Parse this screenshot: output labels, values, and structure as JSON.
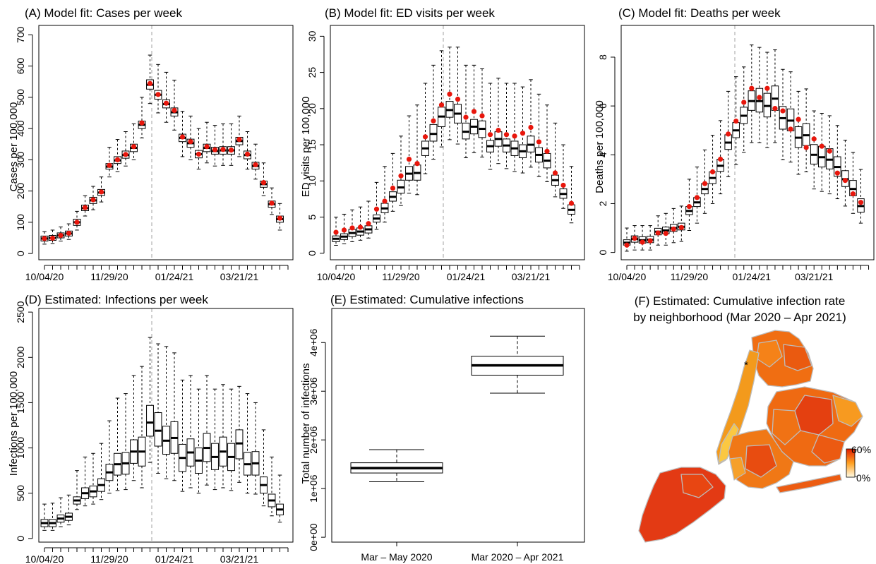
{
  "chart_data": [
    {
      "type": "boxplot",
      "title": "(A) Model fit: Cases per week",
      "ylabel": "Cases per 100,000",
      "ylim": [
        -20,
        730
      ],
      "yticks": [
        0,
        100,
        200,
        300,
        400,
        500,
        600,
        700
      ],
      "xtick_labels": [
        "10/04/20",
        "11/29/20",
        "01/24/21",
        "03/21/21"
      ],
      "x_start": "10/04/20",
      "week_step_days": 7,
      "vline_week": 13,
      "median": [
        48,
        50,
        58,
        64,
        100,
        145,
        170,
        195,
        278,
        298,
        315,
        338,
        412,
        540,
        508,
        478,
        452,
        370,
        353,
        318,
        338,
        328,
        330,
        330,
        360,
        315,
        280,
        222,
        158,
        110
      ],
      "q1": [
        40,
        42,
        50,
        56,
        90,
        137,
        160,
        186,
        270,
        288,
        305,
        326,
        400,
        526,
        494,
        466,
        440,
        358,
        340,
        306,
        326,
        318,
        318,
        318,
        348,
        303,
        270,
        212,
        148,
        100
      ],
      "q3": [
        56,
        58,
        66,
        72,
        110,
        155,
        180,
        205,
        288,
        310,
        328,
        350,
        424,
        556,
        522,
        492,
        466,
        382,
        366,
        330,
        350,
        340,
        342,
        342,
        372,
        328,
        292,
        232,
        168,
        120
      ],
      "wmin": [
        30,
        32,
        40,
        45,
        75,
        120,
        140,
        165,
        245,
        262,
        280,
        300,
        370,
        480,
        450,
        420,
        395,
        310,
        300,
        270,
        290,
        280,
        282,
        282,
        310,
        270,
        238,
        185,
        125,
        75
      ],
      "wmax": [
        70,
        75,
        85,
        95,
        135,
        185,
        215,
        245,
        340,
        365,
        390,
        415,
        500,
        635,
        605,
        580,
        555,
        455,
        440,
        400,
        420,
        410,
        415,
        415,
        440,
        390,
        350,
        290,
        210,
        160
      ],
      "observed": [
        48,
        49,
        58,
        65,
        100,
        147,
        172,
        197,
        282,
        300,
        317,
        342,
        418,
        544,
        509,
        481,
        458,
        373,
        358,
        318,
        342,
        332,
        333,
        331,
        365,
        318,
        284,
        227,
        161,
        113
      ]
    },
    {
      "type": "boxplot",
      "title": "(B) Model fit: ED visits per week",
      "ylabel": "ED visits per 100,000",
      "ylim": [
        -0.9,
        31.5
      ],
      "yticks": [
        0,
        5,
        10,
        15,
        20,
        25,
        30
      ],
      "xtick_labels": [
        "10/04/20",
        "11/29/20",
        "01/24/21",
        "03/21/21"
      ],
      "x_start": "10/04/20",
      "week_step_days": 7,
      "vline_week": 13,
      "median": [
        2.0,
        2.3,
        2.8,
        3.0,
        3.3,
        4.8,
        6.2,
        7.8,
        9.1,
        11.0,
        11.1,
        14.5,
        16.5,
        18.9,
        19.8,
        19.3,
        16.8,
        17.5,
        17.2,
        14.8,
        15.8,
        14.9,
        14.5,
        14.1,
        15.0,
        13.6,
        12.8,
        10.1,
        8.2,
        6.0
      ],
      "q1": [
        1.6,
        1.9,
        2.3,
        2.5,
        2.8,
        4.3,
        5.6,
        7.2,
        8.3,
        10.1,
        10.1,
        13.5,
        15.5,
        17.5,
        18.8,
        18.0,
        15.8,
        16.5,
        16.0,
        14.0,
        14.8,
        14.0,
        13.5,
        13.2,
        14.0,
        12.6,
        11.8,
        9.4,
        7.6,
        5.4
      ],
      "q3": [
        2.4,
        2.7,
        3.3,
        3.5,
        3.8,
        5.3,
        6.9,
        8.5,
        10.1,
        12.0,
        12.2,
        15.5,
        17.8,
        20.2,
        21.0,
        20.6,
        18.0,
        18.5,
        18.3,
        15.6,
        16.8,
        15.8,
        15.5,
        15.0,
        16.2,
        14.6,
        13.8,
        10.8,
        8.9,
        6.7
      ],
      "wmin": [
        1.1,
        1.3,
        1.6,
        1.8,
        2.1,
        3.3,
        4.3,
        5.8,
        6.6,
        8.3,
        8.1,
        11.0,
        13.0,
        14.7,
        15.7,
        15.1,
        13.2,
        13.9,
        13.3,
        11.6,
        12.4,
        11.7,
        11.3,
        11.1,
        11.9,
        10.6,
        9.9,
        7.8,
        6.2,
        4.2
      ],
      "wmax": [
        5.0,
        5.4,
        6.0,
        6.4,
        7.2,
        9.8,
        12.0,
        13.8,
        16.2,
        19.0,
        20.5,
        23.5,
        26.0,
        28.0,
        28.5,
        28.5,
        26.0,
        26.0,
        25.5,
        23.5,
        24.2,
        23.5,
        23.5,
        23.0,
        24.0,
        22.0,
        20.5,
        18.0,
        15.0,
        12.0
      ],
      "observed": [
        2.9,
        3.2,
        3.5,
        3.6,
        4.1,
        6.1,
        7.2,
        9.0,
        10.7,
        13.0,
        12.4,
        16.1,
        18.3,
        20.5,
        22.0,
        21.3,
        18.8,
        19.6,
        19.0,
        16.4,
        17.0,
        16.4,
        16.2,
        16.6,
        17.4,
        15.4,
        14.1,
        11.1,
        9.4,
        6.9
      ]
    },
    {
      "type": "boxplot",
      "title": "(C) Model fit: Deaths per week",
      "ylabel": "Deaths per 100,000",
      "ylim": [
        -0.3,
        9.3
      ],
      "yticks": [
        0,
        2,
        4,
        6,
        8
      ],
      "xtick_labels": [
        "10/04/20",
        "11/29/20",
        "01/24/21",
        "03/21/21"
      ],
      "x_start": "10/04/20",
      "week_step_days": 7,
      "vline_week": 13,
      "median": [
        0.4,
        0.55,
        0.5,
        0.52,
        0.85,
        0.9,
        1.0,
        1.05,
        1.7,
        2.05,
        2.6,
        3.05,
        3.55,
        4.5,
        5.0,
        5.6,
        6.2,
        6.2,
        6.0,
        6.3,
        5.5,
        5.4,
        4.7,
        4.8,
        4.0,
        3.9,
        3.8,
        3.5,
        3.0,
        2.6,
        1.9
      ],
      "q1": [
        0.3,
        0.42,
        0.38,
        0.4,
        0.72,
        0.77,
        0.86,
        0.92,
        1.55,
        1.88,
        2.4,
        2.82,
        3.32,
        4.22,
        4.7,
        5.28,
        5.82,
        5.75,
        5.55,
        5.82,
        5.05,
        4.98,
        4.3,
        4.38,
        3.62,
        3.5,
        3.42,
        3.12,
        2.7,
        2.32,
        1.65
      ],
      "q3": [
        0.52,
        0.68,
        0.64,
        0.66,
        0.99,
        1.04,
        1.15,
        1.2,
        1.88,
        2.25,
        2.82,
        3.3,
        3.82,
        4.82,
        5.32,
        5.95,
        6.62,
        6.72,
        6.52,
        6.82,
        5.98,
        5.88,
        5.15,
        5.28,
        4.42,
        4.35,
        4.25,
        3.92,
        3.35,
        2.95,
        2.2
      ],
      "wmin": [
        0.05,
        0.1,
        0.1,
        0.1,
        0.3,
        0.3,
        0.4,
        0.45,
        0.9,
        1.2,
        1.6,
        2.0,
        2.4,
        3.1,
        3.6,
        4.1,
        4.5,
        4.5,
        4.3,
        4.5,
        3.8,
        3.7,
        3.2,
        3.3,
        2.6,
        2.5,
        2.4,
        2.2,
        1.9,
        1.6,
        1.2
      ],
      "wmax": [
        1.0,
        1.1,
        1.1,
        1.1,
        1.5,
        1.6,
        1.8,
        1.9,
        3.0,
        3.5,
        4.2,
        4.8,
        5.4,
        6.6,
        7.2,
        7.6,
        8.5,
        8.4,
        8.2,
        8.3,
        7.5,
        7.4,
        6.6,
        6.7,
        5.8,
        5.7,
        5.6,
        5.2,
        4.6,
        4.1,
        3.4
      ],
      "observed": [
        0.3,
        0.58,
        0.42,
        0.48,
        0.8,
        0.78,
        0.96,
        1.02,
        1.88,
        2.25,
        2.82,
        3.3,
        3.82,
        4.85,
        5.38,
        6.15,
        6.72,
        6.35,
        6.72,
        5.9,
        5.8,
        5.05,
        5.45,
        4.3,
        4.65,
        4.35,
        4.15,
        3.25,
        2.95,
        2.4,
        2.05
      ]
    },
    {
      "type": "boxplot",
      "title": "(D) Estimated: Infections per week",
      "ylabel": "Infections per 100,000",
      "ylim": [
        -40,
        2540
      ],
      "yticks": [
        0,
        500,
        1000,
        1500,
        2000,
        2500
      ],
      "xtick_labels": [
        "10/04/20",
        "11/29/20",
        "01/24/21",
        "03/21/21"
      ],
      "x_start": "10/04/20",
      "week_step_days": 7,
      "vline_week": 13,
      "median": [
        170,
        170,
        220,
        240,
        420,
        500,
        520,
        590,
        730,
        820,
        830,
        960,
        960,
        1280,
        1190,
        1080,
        1110,
        890,
        950,
        860,
        1000,
        900,
        960,
        900,
        1050,
        820,
        830,
        590,
        420,
        320
      ],
      "q1": [
        130,
        130,
        180,
        200,
        380,
        440,
        460,
        520,
        640,
        700,
        710,
        830,
        800,
        1130,
        1020,
        930,
        940,
        740,
        800,
        720,
        850,
        760,
        800,
        750,
        880,
        700,
        700,
        500,
        350,
        260
      ],
      "q3": [
        210,
        210,
        260,
        280,
        460,
        560,
        580,
        660,
        820,
        940,
        950,
        1090,
        1120,
        1470,
        1390,
        1240,
        1290,
        1040,
        1100,
        1000,
        1160,
        1050,
        1120,
        1050,
        1200,
        950,
        960,
        680,
        490,
        380
      ],
      "wmin": [
        90,
        90,
        130,
        150,
        320,
        360,
        380,
        430,
        500,
        530,
        540,
        640,
        560,
        840,
        720,
        660,
        640,
        520,
        560,
        500,
        590,
        540,
        560,
        530,
        620,
        500,
        490,
        360,
        250,
        180
      ],
      "wmax": [
        380,
        390,
        450,
        480,
        750,
        900,
        940,
        1050,
        1300,
        1550,
        1600,
        1800,
        1900,
        2220,
        2150,
        2120,
        2050,
        1750,
        1800,
        1650,
        1800,
        1650,
        1700,
        1650,
        1680,
        1600,
        1500,
        1200,
        900,
        700
      ]
    },
    {
      "type": "boxplot",
      "title": "(E) Estimated: Cumulative infections",
      "ylabel": "Total number of infections",
      "ylim": [
        -100000,
        4700000
      ],
      "ytick_labels": [
        "0e+00",
        "1e+06",
        "2e+06",
        "3e+06",
        "4e+06"
      ],
      "categories": [
        "Mar – May 2020",
        "Mar 2020 – Apr 2021"
      ],
      "median": [
        1420000,
        3530000
      ],
      "q1": [
        1320000,
        3330000
      ],
      "q3": [
        1530000,
        3720000
      ],
      "wmin": [
        1140000,
        2960000
      ],
      "wmax": [
        1800000,
        4130000
      ]
    }
  ],
  "map": {
    "title_line1": "(F) Estimated: Cumulative infection rate",
    "title_line2": "by neighborhood (Mar 2020 – Apr 2021)",
    "legend_max": "60%",
    "legend_min": "0%",
    "star": "*",
    "color_low": "#fffbe6",
    "color_mid": "#ffa020",
    "color_high": "#e01c00"
  },
  "colors": {
    "observed_point": "#e8160c",
    "vline": "#b0b0b0",
    "box_fill": "#ffffff",
    "border": "#000000"
  }
}
